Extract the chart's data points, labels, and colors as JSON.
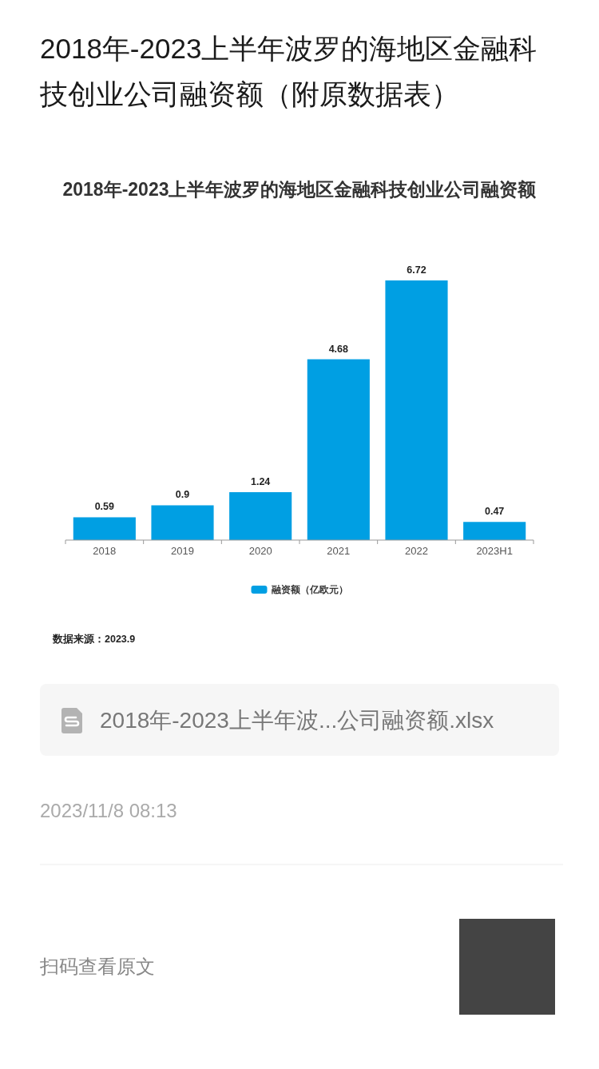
{
  "chart_data": {
    "type": "bar",
    "title": "2018年-2023上半年波罗的海地区金融科技创业公司融资额（附原数据表）",
    "subtitle": "2018年-2023上半年波罗的海地区金融科技创业公司融资额",
    "categories": [
      "2018",
      "2019",
      "2020",
      "2021",
      "2022",
      "2023H1"
    ],
    "series": [
      {
        "name": "融资额（亿欧元）",
        "color": "#009fe3",
        "values": [
          0.59,
          0.9,
          1.24,
          4.68,
          6.72,
          0.47
        ]
      }
    ],
    "data_labels": true,
    "legend": "bottom",
    "annotations": [
      "数据来源：2023.9",
      "2018年-2023上半年波...公司融资额.xlsx",
      "2023/11/8 08:13",
      "扫码查看原文"
    ]
  }
}
